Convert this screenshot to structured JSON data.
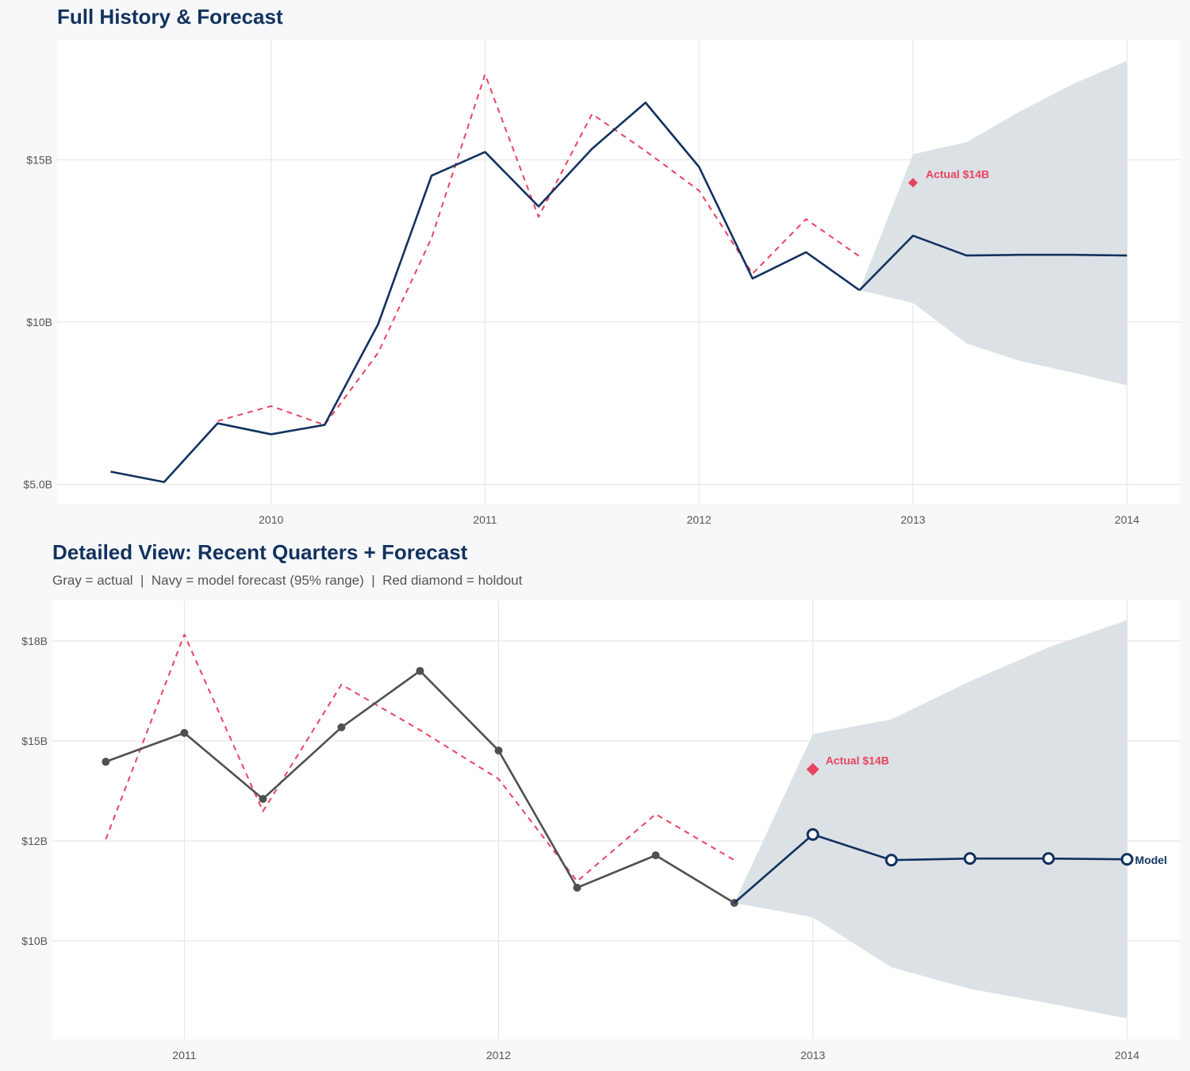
{
  "colors": {
    "navy": "#12325e",
    "gray": "#505050",
    "red": "#e8435f",
    "band": "#dadfe5",
    "grid": "#e2e2e2",
    "background": "#f7f8fa"
  },
  "chart_data": [
    {
      "type": "line",
      "title": "Full History & Forecast",
      "subtitle": "",
      "xlim": [
        2009.0,
        2014.25
      ],
      "ylim": [
        4.4,
        18.7
      ],
      "x_ticks": [
        2010,
        2011,
        2012,
        2013,
        2014
      ],
      "x_tick_labels": [
        "2010",
        "2011",
        "2012",
        "2013",
        "2014"
      ],
      "y_ticks": [
        5,
        10,
        15
      ],
      "y_tick_labels": [
        "$5.0B",
        "$10B",
        "$15B"
      ],
      "grid": true,
      "series": [
        {
          "role": "actual",
          "color": "navy",
          "style": "solid",
          "markers": false,
          "x": [
            2009.25,
            2009.5,
            2009.75,
            2010,
            2010.25,
            2010.5,
            2010.75,
            2011,
            2011.25,
            2011.5,
            2011.75,
            2012,
            2012.25,
            2012.5,
            2012.75
          ],
          "y": [
            5.39,
            5.07,
            6.88,
            6.54,
            6.83,
            9.93,
            14.51,
            15.24,
            13.56,
            15.34,
            16.76,
            14.78,
            11.34,
            12.15,
            10.98
          ]
        },
        {
          "role": "forecast",
          "color": "navy",
          "style": "solid",
          "markers": false,
          "x": [
            2012.75,
            2013,
            2013.25,
            2013.5,
            2013.75,
            2014
          ],
          "y": [
            10.98,
            12.66,
            12.05,
            12.07,
            12.07,
            12.05
          ]
        },
        {
          "role": "fitted",
          "color": "red",
          "style": "dashed",
          "markers": false,
          "x": [
            2009.75,
            2010,
            2010.25,
            2010.5,
            2010.75,
            2011,
            2011.25,
            2011.5,
            2011.75,
            2012,
            2012.25,
            2012.5,
            2012.75
          ],
          "y": [
            6.95,
            7.41,
            6.83,
            9.05,
            12.59,
            17.63,
            13.24,
            16.41,
            15.27,
            14.05,
            11.49,
            13.17,
            12.02
          ]
        }
      ],
      "band": {
        "x": [
          2012.75,
          2013,
          2013.25,
          2013.5,
          2013.75,
          2014
        ],
        "upper": [
          10.98,
          15.17,
          15.54,
          16.49,
          17.34,
          18.05
        ],
        "lower": [
          10.98,
          10.59,
          9.34,
          8.8,
          8.44,
          8.05
        ]
      },
      "holdout": {
        "x": 2013,
        "y": 14.29,
        "label": "Actual $14B"
      },
      "end_label": ""
    },
    {
      "type": "line",
      "title": "Detailed View: Recent Quarters + Forecast",
      "subtitle": "Gray = actual  |  Navy = model forecast (95% range)  |  Red diamond = holdout",
      "xlim": [
        2010.58,
        2014.17
      ],
      "ylim": [
        7.54,
        18.51
      ],
      "x_ticks": [
        2011,
        2012,
        2013,
        2014
      ],
      "x_tick_labels": [
        "2011",
        "2012",
        "2013",
        "2014"
      ],
      "y_ticks": [
        10,
        12.5,
        15,
        17.5
      ],
      "y_tick_labels": [
        "$10B",
        "$12B",
        "$15B",
        "$18B"
      ],
      "grid": true,
      "series": [
        {
          "role": "actual",
          "color": "gray",
          "style": "solid",
          "markers": "filled",
          "x": [
            2010.75,
            2011,
            2011.25,
            2011.5,
            2011.75,
            2012,
            2012.25,
            2012.5,
            2012.75
          ],
          "y": [
            14.48,
            15.2,
            13.55,
            15.34,
            16.75,
            14.76,
            11.33,
            12.14,
            10.95
          ]
        },
        {
          "role": "forecast",
          "color": "navy",
          "style": "solid",
          "markers": "open",
          "x": [
            2012.75,
            2013,
            2013.25,
            2013.5,
            2013.75,
            2014
          ],
          "y": [
            10.95,
            12.66,
            12.02,
            12.06,
            12.06,
            12.04
          ]
        },
        {
          "role": "fitted",
          "color": "red",
          "style": "dashed",
          "markers": false,
          "x": [
            2010.75,
            2011,
            2011.25,
            2011.5,
            2011.75,
            2012,
            2012.25,
            2012.5,
            2012.75
          ],
          "y": [
            12.54,
            17.66,
            13.24,
            16.41,
            15.27,
            14.05,
            11.49,
            13.17,
            12.02
          ]
        }
      ],
      "band": {
        "x": [
          2012.75,
          2013,
          2013.25,
          2013.5,
          2013.75,
          2014
        ],
        "upper": [
          10.95,
          15.17,
          15.54,
          16.49,
          17.34,
          18.02
        ],
        "lower": [
          10.95,
          10.59,
          9.34,
          8.8,
          8.44,
          8.06
        ]
      },
      "holdout": {
        "x": 2013,
        "y": 14.29,
        "label": "Actual $14B"
      },
      "end_label": "Model"
    }
  ]
}
